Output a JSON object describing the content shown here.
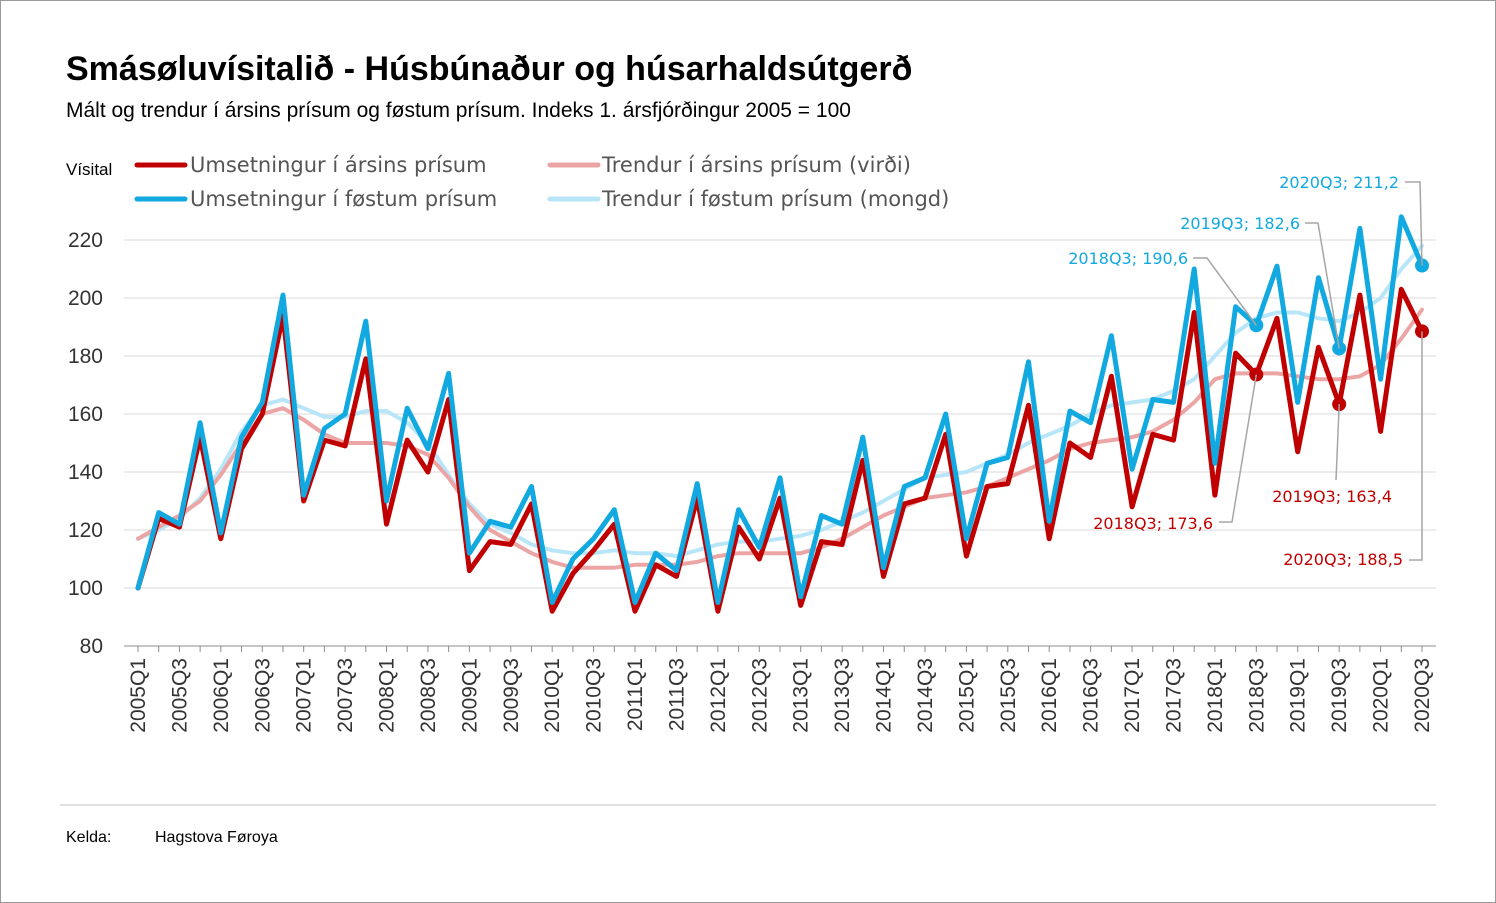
{
  "title": "Smásøluvísitalið - Húsbúnaður og húsarhaldsútgerð",
  "subtitle": "Mált og trendur í ársins prísum og føstum prísum. Indeks 1. ársfjórðingur 2005 = 100",
  "footer": {
    "source_label": "Kelda:",
    "source_value": "Hagstova Føroya"
  },
  "colors": {
    "red": "#C00000",
    "light_red": "#ECA5A5",
    "blue": "#12A9E1",
    "light_blue": "#B8E6F8",
    "grid": "#D9D9D9",
    "axis": "#8C8C8C"
  },
  "chart_data": {
    "type": "line",
    "ylabel": "Vísital",
    "ylim": [
      80,
      230
    ],
    "yticks": [
      80,
      100,
      120,
      140,
      160,
      180,
      200,
      220
    ],
    "x": [
      "2005Q1",
      "2005Q2",
      "2005Q3",
      "2005Q4",
      "2006Q1",
      "2006Q2",
      "2006Q3",
      "2006Q4",
      "2007Q1",
      "2007Q2",
      "2007Q3",
      "2007Q4",
      "2008Q1",
      "2008Q2",
      "2008Q3",
      "2008Q4",
      "2009Q1",
      "2009Q2",
      "2009Q3",
      "2009Q4",
      "2010Q1",
      "2010Q2",
      "2010Q3",
      "2010Q4",
      "2011Q1",
      "2011Q2",
      "2011Q3",
      "2011Q4",
      "2012Q1",
      "2012Q2",
      "2012Q3",
      "2012Q4",
      "2013Q1",
      "2013Q2",
      "2013Q3",
      "2013Q4",
      "2014Q1",
      "2014Q2",
      "2014Q3",
      "2014Q4",
      "2015Q1",
      "2015Q2",
      "2015Q3",
      "2015Q4",
      "2016Q1",
      "2016Q2",
      "2016Q3",
      "2016Q4",
      "2017Q1",
      "2017Q2",
      "2017Q3",
      "2017Q4",
      "2018Q1",
      "2018Q2",
      "2018Q3",
      "2018Q4",
      "2019Q1",
      "2019Q2",
      "2019Q3",
      "2019Q4",
      "2020Q1",
      "2020Q2",
      "2020Q3"
    ],
    "xtick_labels": [
      "2005Q1",
      "2005Q3",
      "2006Q1",
      "2006Q3",
      "2007Q1",
      "2007Q3",
      "2008Q1",
      "2008Q3",
      "2009Q1",
      "2009Q3",
      "2010Q1",
      "2010Q3",
      "2011Q1",
      "2011Q3",
      "2012Q1",
      "2012Q3",
      "2013Q1",
      "2013Q3",
      "2014Q1",
      "2014Q3",
      "2015Q1",
      "2015Q3",
      "2016Q1",
      "2016Q3",
      "2017Q1",
      "2017Q3",
      "2018Q1",
      "2018Q3",
      "2019Q1",
      "2019Q3",
      "2020Q1",
      "2020Q3"
    ],
    "legend": [
      "Umsetningur í ársins prísum",
      "Trendur í ársins prísum (virði)",
      "Umsetningur í føstum prísum",
      "Trendur í føstum prísum (mongd)"
    ],
    "series": [
      {
        "name": "Trendur í føstum prísum (mongd)",
        "color_key": "light_blue",
        "values": [
          117,
          120,
          124,
          131,
          141,
          154,
          163,
          165,
          162,
          159,
          159,
          161,
          161,
          157,
          150,
          139,
          129,
          122,
          119,
          115,
          113,
          112,
          112,
          113,
          112,
          112,
          111,
          113,
          115,
          116,
          116,
          117,
          118,
          120,
          123,
          126,
          130,
          134,
          138,
          139,
          140,
          143,
          146,
          150,
          153,
          156,
          160,
          163,
          164,
          165,
          168,
          172,
          180,
          188,
          193,
          195,
          195,
          193,
          192,
          195,
          200,
          210,
          218
        ]
      },
      {
        "name": "Trendur í ársins prísum (virði)",
        "color_key": "light_red",
        "values": [
          117,
          121,
          125,
          130,
          139,
          150,
          160,
          162,
          158,
          153,
          150,
          150,
          150,
          149,
          146,
          138,
          128,
          120,
          116,
          112,
          109,
          107,
          107,
          107,
          108,
          108,
          108,
          109,
          111,
          112,
          112,
          112,
          112,
          114,
          117,
          121,
          125,
          128,
          131,
          132,
          133,
          135,
          138,
          141,
          144,
          148,
          150,
          151,
          152,
          154,
          158,
          164,
          172,
          174,
          174,
          174,
          173,
          172,
          172,
          173,
          177,
          186,
          196
        ]
      },
      {
        "name": "Umsetningur í ársins prísum",
        "color_key": "red",
        "values": [
          100,
          124,
          121,
          152,
          117,
          148,
          160,
          194,
          130,
          151,
          149,
          179,
          122,
          151,
          140,
          165,
          106,
          116,
          115,
          129,
          92,
          105,
          113,
          122,
          92,
          108,
          104,
          131,
          92,
          121,
          110,
          131,
          94,
          116,
          115,
          144,
          104,
          129,
          131,
          153,
          111,
          135,
          136,
          163,
          117,
          150,
          145,
          173,
          128,
          153,
          151,
          195,
          132,
          181,
          173.6,
          193,
          147,
          183,
          163.4,
          201,
          154,
          203,
          188.5
        ]
      },
      {
        "name": "Umsetningur í føstum prísum",
        "color_key": "blue",
        "values": [
          100,
          126,
          122,
          157,
          119,
          152,
          164,
          201,
          132,
          155,
          160,
          192,
          130,
          162,
          148,
          174,
          112,
          123,
          121,
          135,
          95,
          110,
          117,
          127,
          95,
          112,
          106,
          136,
          95,
          127,
          114,
          138,
          97,
          125,
          122,
          152,
          107,
          135,
          138,
          160,
          117,
          143,
          145,
          178,
          123,
          161,
          157,
          187,
          141,
          165,
          164,
          210,
          143,
          197,
          190.6,
          211,
          164,
          207,
          182.6,
          224,
          172,
          228,
          211.2
        ]
      }
    ],
    "annotations": [
      {
        "label": "2018Q3; 190,6",
        "x": "2018Q3",
        "value": 190.6,
        "series_color": "blue"
      },
      {
        "label": "2019Q3; 182,6",
        "x": "2019Q3",
        "value": 182.6,
        "series_color": "blue"
      },
      {
        "label": "2020Q3; 211,2",
        "x": "2020Q3",
        "value": 211.2,
        "series_color": "blue"
      },
      {
        "label": "2018Q3; 173,6",
        "x": "2018Q3",
        "value": 173.6,
        "series_color": "red"
      },
      {
        "label": "2019Q3; 163,4",
        "x": "2019Q3",
        "value": 163.4,
        "series_color": "red"
      },
      {
        "label": "2020Q3; 188,5",
        "x": "2020Q3",
        "value": 188.5,
        "series_color": "red"
      }
    ]
  }
}
